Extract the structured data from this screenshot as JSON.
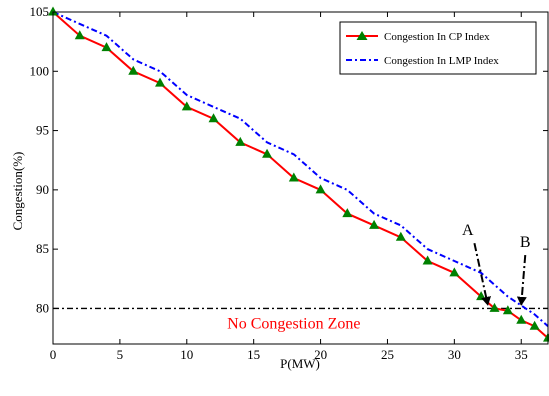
{
  "chart_data": {
    "type": "line",
    "xlabel": "P(MW)",
    "ylabel": "Congestion(%)",
    "xlim": [
      0,
      37
    ],
    "ylim": [
      77,
      105
    ],
    "xticks": [
      0,
      5,
      10,
      15,
      20,
      25,
      30,
      35
    ],
    "yticks": [
      80,
      85,
      90,
      95,
      100,
      105
    ],
    "grid": false,
    "legend_position": "top-right",
    "series": [
      {
        "name": "Congestion In CP Index",
        "color": "#ff0000",
        "marker_color": "#008000",
        "marker": "triangle",
        "line_style": "solid",
        "x": [
          0,
          2,
          4,
          6,
          8,
          10,
          12,
          14,
          16,
          18,
          20,
          22,
          24,
          26,
          28,
          30,
          32,
          33,
          34,
          35,
          36,
          37
        ],
        "y": [
          105,
          103,
          102,
          100,
          99,
          97,
          96,
          94,
          93,
          91,
          90,
          88,
          87,
          86,
          84,
          83,
          81,
          80,
          79.8,
          79,
          78.5,
          77.5
        ]
      },
      {
        "name": "Congestion In LMP Index",
        "color": "#0000ff",
        "line_style": "dashdot",
        "x": [
          0,
          2,
          4,
          6,
          8,
          10,
          12,
          14,
          16,
          18,
          20,
          22,
          24,
          26,
          28,
          30,
          32,
          34,
          36,
          37
        ],
        "y": [
          105,
          104,
          103,
          101,
          100,
          98,
          97,
          96,
          94,
          93,
          91,
          90,
          88,
          87,
          85,
          84,
          83,
          81,
          79.5,
          78.5
        ]
      }
    ],
    "threshold": {
      "y": 80,
      "style": "dashdot",
      "color": "#000000"
    },
    "annotations": [
      {
        "label": "A",
        "text_at": [
          31,
          86.2
        ],
        "arrow_from": [
          31.5,
          85.5
        ],
        "arrow_to": [
          32.5,
          80.3
        ]
      },
      {
        "label": "B",
        "text_at": [
          35.3,
          85.2
        ],
        "arrow_from": [
          35.3,
          84.5
        ],
        "arrow_to": [
          35,
          80.3
        ]
      }
    ],
    "zone_label": "No Congestion Zone",
    "zone_label_at": [
      18,
      78.3
    ]
  }
}
